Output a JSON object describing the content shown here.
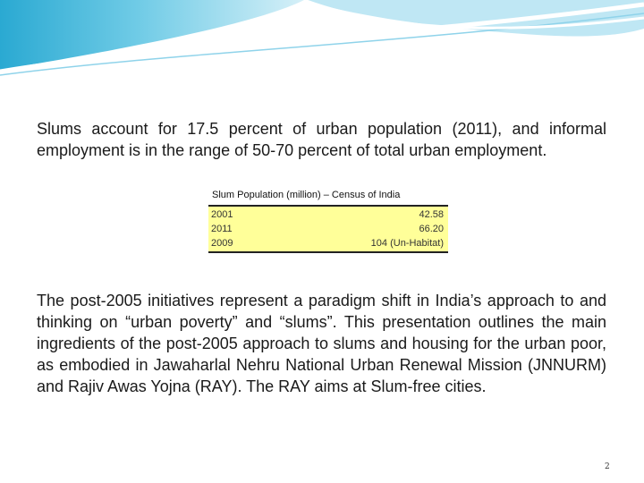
{
  "paragraphs": {
    "intro": "Slums account for 17.5 percent of urban population (2011), and informal employment is in the range of 50-70 percent of total urban employment.",
    "main": "The post-2005 initiatives represent a paradigm shift in India’s approach to and thinking on “urban poverty” and “slums”. This presentation outlines the main ingredients of the post-2005 approach to slums and housing for the urban poor, as embodied in Jawaharlal Nehru National Urban Renewal Mission (JNNURM) and Rajiv Awas Yojna (RAY). The RAY aims at Slum-free cities."
  },
  "slum_table": {
    "caption": "Slum Population (million) – Census of India",
    "rows": [
      {
        "year": "2001",
        "value": "42.58"
      },
      {
        "year": "2011",
        "value": "66.20"
      },
      {
        "year": "2009",
        "value": "104 (Un-Habitat)"
      }
    ]
  },
  "colors": {
    "banner_light": "#bfe7f4",
    "banner_mid": "#6fcbe6",
    "banner_dark": "#2aa9d2",
    "table_fill": "#ffff99"
  },
  "footer": {
    "page_number": "2"
  }
}
